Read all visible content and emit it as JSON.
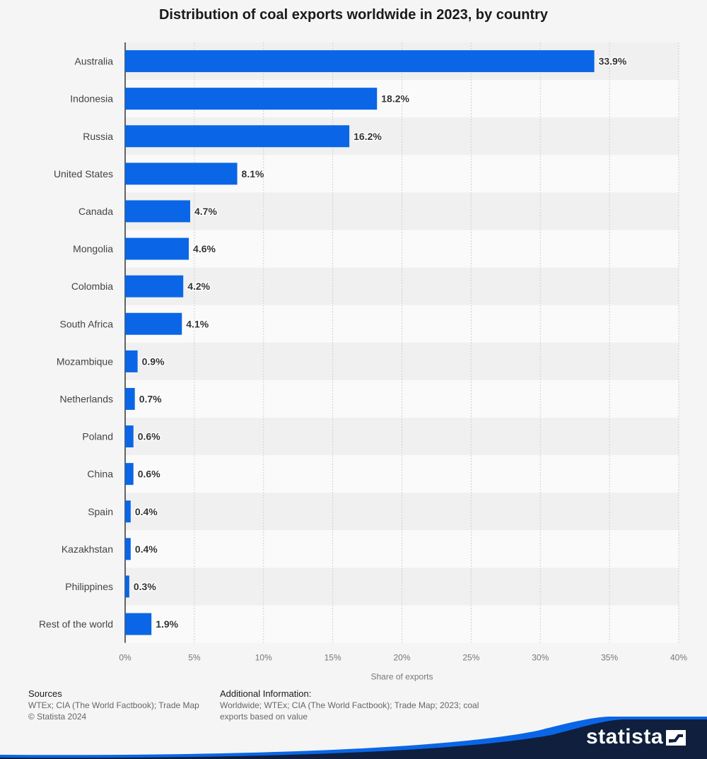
{
  "chart_data": {
    "type": "bar",
    "orientation": "horizontal",
    "title": "Distribution of coal exports worldwide in 2023, by country",
    "xlabel": "Share of exports",
    "xlim": [
      0,
      40
    ],
    "ticks": [
      "0%",
      "5%",
      "10%",
      "15%",
      "20%",
      "25%",
      "30%",
      "35%",
      "40%"
    ],
    "categories": [
      "Australia",
      "Indonesia",
      "Russia",
      "United States",
      "Canada",
      "Mongolia",
      "Colombia",
      "South Africa",
      "Mozambique",
      "Netherlands",
      "Poland",
      "China",
      "Spain",
      "Kazakhstan",
      "Philippines",
      "Rest of the world"
    ],
    "values": [
      33.9,
      18.2,
      16.2,
      8.1,
      4.7,
      4.6,
      4.2,
      4.1,
      0.9,
      0.7,
      0.6,
      0.6,
      0.4,
      0.4,
      0.3,
      1.9
    ],
    "value_labels": [
      "33.9%",
      "18.2%",
      "16.2%",
      "8.1%",
      "4.7%",
      "4.6%",
      "4.2%",
      "4.1%",
      "0.9%",
      "0.7%",
      "0.6%",
      "0.6%",
      "0.4%",
      "0.4%",
      "0.3%",
      "1.9%"
    ],
    "bar_color": "#0a66e6",
    "grid": true
  },
  "footer": {
    "sources_heading": "Sources",
    "sources_line1": "WTEx; CIA (The World Factbook); Trade Map",
    "sources_line2": "© Statista 2024",
    "additional_heading": "Additional Information:",
    "additional_line1": "Worldwide; WTEx; CIA (The World Factbook); Trade Map; 2023; coal",
    "additional_line2": "exports based on value"
  },
  "brand": {
    "name": "statista",
    "color_dark": "#0f1f3d",
    "color_accent": "#0a66e6"
  }
}
